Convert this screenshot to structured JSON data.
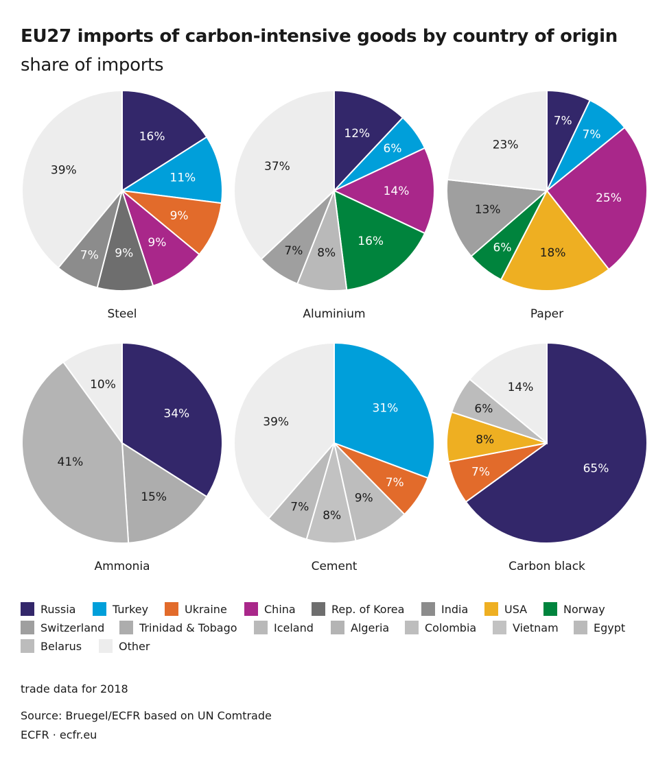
{
  "title": {
    "bold": "EU27 imports of carbon-intensive goods by country of origin",
    "rest": "share of imports"
  },
  "colors": {
    "Russia": "#33276a",
    "Turkey": "#009fda",
    "Ukraine": "#e26b2b",
    "China": "#a9278a",
    "Rep. of Korea": "#6e6e6e",
    "India": "#8c8c8c",
    "USA": "#eeaf22",
    "Norway": "#00843d",
    "Switzerland": "#9f9f9f",
    "Trinidad & Tobago": "#adadad",
    "Iceland": "#b9b9b9",
    "Algeria": "#b4b4b4",
    "Colombia": "#bdbdbd",
    "Vietnam": "#c2c2c2",
    "Egypt": "#bababa",
    "Belarus": "#bcbcbc",
    "Other": "#ededed"
  },
  "legend": {
    "items": [
      "Russia",
      "Turkey",
      "Ukraine",
      "China",
      "Rep. of Korea",
      "India",
      "USA",
      "Norway",
      "Switzerland",
      "Trinidad & Tobago",
      "Iceland",
      "Algeria",
      "Colombia",
      "Vietnam",
      "Egypt",
      "Belarus",
      "Other"
    ]
  },
  "chart_data": [
    {
      "type": "pie",
      "title": "Steel",
      "slices": [
        {
          "label": "Russia",
          "value": 16,
          "text": "16%"
        },
        {
          "label": "Turkey",
          "value": 11,
          "text": "11%"
        },
        {
          "label": "Ukraine",
          "value": 9,
          "text": "9%"
        },
        {
          "label": "China",
          "value": 9,
          "text": "9%"
        },
        {
          "label": "Rep. of Korea",
          "value": 9,
          "text": "9%"
        },
        {
          "label": "India",
          "value": 7,
          "text": "7%"
        },
        {
          "label": "Other",
          "value": 39,
          "text": "39%"
        }
      ]
    },
    {
      "type": "pie",
      "title": "Aluminium",
      "slices": [
        {
          "label": "Russia",
          "value": 12,
          "text": "12%"
        },
        {
          "label": "Turkey",
          "value": 6,
          "text": "6%"
        },
        {
          "label": "China",
          "value": 14,
          "text": "14%"
        },
        {
          "label": "Norway",
          "value": 16,
          "text": "16%"
        },
        {
          "label": "Iceland",
          "value": 8,
          "text": "8%"
        },
        {
          "label": "Switzerland",
          "value": 7,
          "text": "7%"
        },
        {
          "label": "Other",
          "value": 37,
          "text": "37%"
        }
      ]
    },
    {
      "type": "pie",
      "title": "Paper",
      "slices": [
        {
          "label": "Russia",
          "value": 7,
          "text": "7%"
        },
        {
          "label": "Turkey",
          "value": 7,
          "text": "7%"
        },
        {
          "label": "China",
          "value": 25,
          "text": "25%"
        },
        {
          "label": "USA",
          "value": 18,
          "text": "18%"
        },
        {
          "label": "Norway",
          "value": 6,
          "text": "6%"
        },
        {
          "label": "Switzerland",
          "value": 13,
          "text": "13%"
        },
        {
          "label": "Other",
          "value": 23,
          "text": "23%"
        }
      ]
    },
    {
      "type": "pie",
      "title": "Ammonia",
      "slices": [
        {
          "label": "Russia",
          "value": 34,
          "text": "34%"
        },
        {
          "label": "Trinidad & Tobago",
          "value": 15,
          "text": "15%"
        },
        {
          "label": "Algeria",
          "value": 41,
          "text": "41%"
        },
        {
          "label": "Other",
          "value": 10,
          "text": "10%"
        }
      ]
    },
    {
      "type": "pie",
      "title": "Cement",
      "slices": [
        {
          "label": "Turkey",
          "value": 31,
          "text": "31%"
        },
        {
          "label": "Ukraine",
          "value": 7,
          "text": "7%"
        },
        {
          "label": "Colombia",
          "value": 9,
          "text": "9%"
        },
        {
          "label": "Vietnam",
          "value": 8,
          "text": "8%"
        },
        {
          "label": "Egypt",
          "value": 7,
          "text": "7%"
        },
        {
          "label": "Other",
          "value": 39,
          "text": "39%"
        }
      ]
    },
    {
      "type": "pie",
      "title": "Carbon black",
      "slices": [
        {
          "label": "Russia",
          "value": 65,
          "text": "65%"
        },
        {
          "label": "Ukraine",
          "value": 7,
          "text": "7%"
        },
        {
          "label": "USA",
          "value": 8,
          "text": "8%"
        },
        {
          "label": "Belarus",
          "value": 6,
          "text": "6%"
        },
        {
          "label": "Other",
          "value": 14,
          "text": "14%"
        }
      ]
    }
  ],
  "notes": {
    "data_year": "trade data for 2018",
    "source": "Source: Bruegel/ECFR based on UN Comtrade",
    "credit": "ECFR · ecfr.eu"
  }
}
